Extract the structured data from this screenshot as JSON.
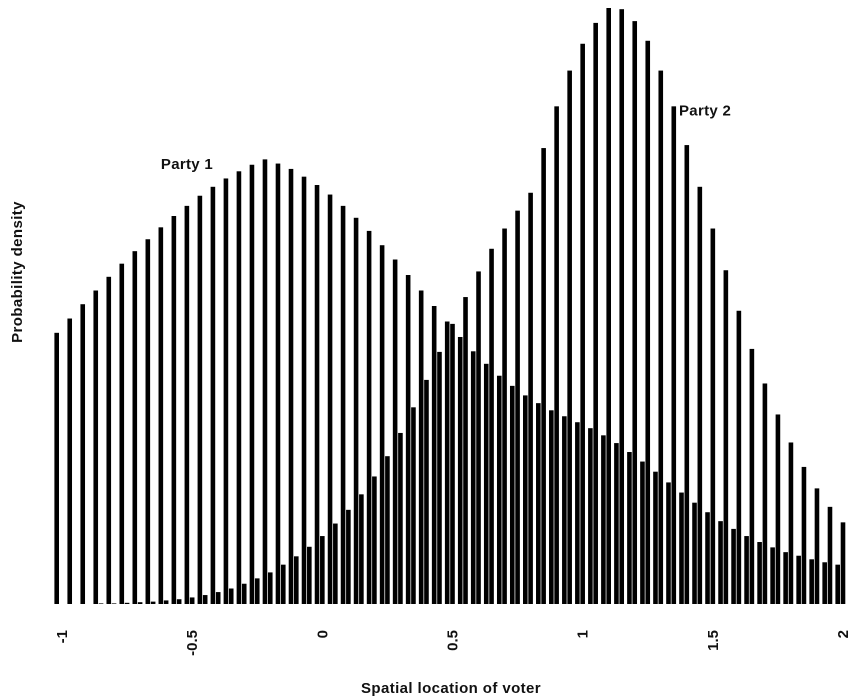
{
  "chart_data": {
    "type": "bar",
    "xlabel": "Spatial location of voter",
    "ylabel": "Probability density",
    "xlim": [
      -1,
      2
    ],
    "ylim": [
      0,
      1
    ],
    "x_ticks": [
      "-1",
      "-0.5",
      "0",
      "0.5",
      "1",
      "1.5",
      "2"
    ],
    "tick_values": [
      -1,
      -0.5,
      0,
      0.5,
      1,
      1.5,
      2
    ],
    "grid": false,
    "colors": {
      "bars": "#000000",
      "background": "#ffffff"
    },
    "series": [
      {
        "name": "Party 1",
        "x": [
          -1.0,
          -0.95,
          -0.9,
          -0.85,
          -0.8,
          -0.75,
          -0.7,
          -0.65,
          -0.6,
          -0.55,
          -0.5,
          -0.45,
          -0.4,
          -0.35,
          -0.3,
          -0.25,
          -0.2,
          -0.15,
          -0.1,
          -0.05,
          0.0,
          0.05,
          0.1,
          0.15,
          0.2,
          0.25,
          0.3,
          0.35,
          0.4,
          0.45,
          0.5,
          0.55,
          0.6,
          0.65,
          0.7,
          0.75,
          0.8,
          0.85,
          0.9,
          0.95,
          1.0,
          1.05,
          1.1,
          1.15,
          1.2,
          1.25,
          1.3,
          1.35,
          1.4,
          1.45,
          1.5,
          1.55,
          1.6,
          1.65,
          1.7,
          1.75,
          1.8,
          1.85,
          1.9,
          1.95,
          2.0
        ],
        "values": [
          0.455,
          0.479,
          0.503,
          0.526,
          0.549,
          0.571,
          0.592,
          0.612,
          0.632,
          0.651,
          0.668,
          0.685,
          0.7,
          0.714,
          0.726,
          0.737,
          0.746,
          0.739,
          0.73,
          0.717,
          0.703,
          0.687,
          0.668,
          0.648,
          0.626,
          0.602,
          0.578,
          0.552,
          0.526,
          0.5,
          0.474,
          0.448,
          0.424,
          0.403,
          0.383,
          0.366,
          0.35,
          0.337,
          0.325,
          0.315,
          0.305,
          0.295,
          0.283,
          0.27,
          0.255,
          0.239,
          0.222,
          0.204,
          0.187,
          0.17,
          0.154,
          0.139,
          0.126,
          0.114,
          0.104,
          0.095,
          0.087,
          0.081,
          0.075,
          0.07,
          0.066
        ]
      },
      {
        "name": "Party 2",
        "x": [
          -1.0,
          -0.95,
          -0.9,
          -0.85,
          -0.8,
          -0.75,
          -0.7,
          -0.65,
          -0.6,
          -0.55,
          -0.5,
          -0.45,
          -0.4,
          -0.35,
          -0.3,
          -0.25,
          -0.2,
          -0.15,
          -0.1,
          -0.05,
          0.0,
          0.05,
          0.1,
          0.15,
          0.2,
          0.25,
          0.3,
          0.35,
          0.4,
          0.45,
          0.5,
          0.55,
          0.6,
          0.65,
          0.7,
          0.75,
          0.8,
          0.85,
          0.9,
          0.95,
          1.0,
          1.05,
          1.1,
          1.15,
          1.2,
          1.25,
          1.3,
          1.35,
          1.4,
          1.45,
          1.5,
          1.55,
          1.6,
          1.65,
          1.7,
          1.75,
          1.8,
          1.85,
          1.9,
          1.95,
          2.0
        ],
        "values": [
          0.0,
          0.0,
          0.0,
          0.001,
          0.001,
          0.002,
          0.003,
          0.004,
          0.006,
          0.008,
          0.011,
          0.015,
          0.02,
          0.026,
          0.034,
          0.043,
          0.053,
          0.066,
          0.08,
          0.096,
          0.114,
          0.135,
          0.158,
          0.184,
          0.214,
          0.248,
          0.287,
          0.33,
          0.376,
          0.423,
          0.47,
          0.515,
          0.558,
          0.596,
          0.63,
          0.66,
          0.69,
          0.765,
          0.835,
          0.895,
          0.94,
          0.975,
          1.0,
          0.998,
          0.978,
          0.945,
          0.895,
          0.835,
          0.77,
          0.7,
          0.63,
          0.56,
          0.492,
          0.428,
          0.37,
          0.318,
          0.271,
          0.23,
          0.194,
          0.163,
          0.137
        ]
      }
    ],
    "annotations": [
      {
        "text": "Party 1",
        "x": -0.62,
        "y": 0.73
      },
      {
        "text": "Party 2",
        "x": 1.37,
        "y": 0.82
      }
    ]
  }
}
